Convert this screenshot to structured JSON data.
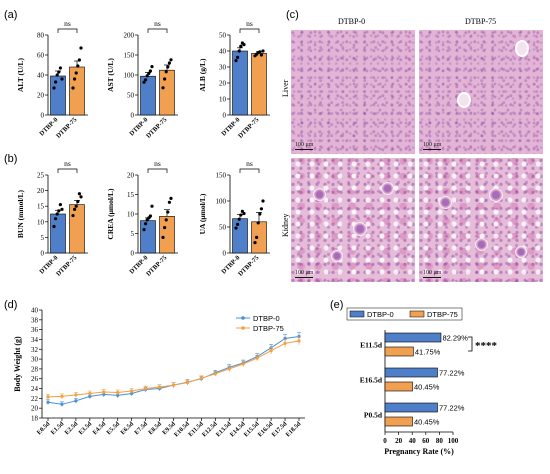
{
  "panels": {
    "a": "(a)",
    "b": "(b)",
    "c": "(c)",
    "d": "(d)",
    "e": "(e)"
  },
  "colors": {
    "group0": "#4f7fc8",
    "group75": "#f0a050",
    "line0": "#4a90d9",
    "line75": "#f5a040"
  },
  "bar_groups": [
    "DTBP-0",
    "DTBP-75"
  ],
  "ns_label": "ns",
  "bar_charts": [
    {
      "id": "alt",
      "ylabel": "ALT (U/L)",
      "ylim": [
        0,
        80
      ],
      "yticks": [
        0,
        20,
        40,
        60,
        80
      ],
      "means": [
        39,
        48
      ],
      "errors": [
        5,
        6
      ],
      "points": [
        [
          27,
          33,
          40,
          43,
          47,
          36
        ],
        [
          27,
          36,
          42,
          49,
          55,
          67
        ]
      ]
    },
    {
      "id": "ast",
      "ylabel": "AST (U/L)",
      "ylim": [
        0,
        200
      ],
      "yticks": [
        0,
        50,
        100,
        150,
        200
      ],
      "means": [
        97,
        112
      ],
      "errors": [
        9,
        13
      ],
      "points": [
        [
          82,
          88,
          98,
          104,
          110,
          121
        ],
        [
          68,
          90,
          108,
          120,
          130,
          138
        ]
      ]
    },
    {
      "id": "alb",
      "ylabel": "ALB (g/L)",
      "ylim": [
        0,
        50
      ],
      "yticks": [
        0,
        10,
        20,
        30,
        40,
        50
      ],
      "means": [
        40,
        38.5
      ],
      "errors": [
        2,
        1
      ],
      "points": [
        [
          34,
          36,
          40,
          43,
          45,
          44
        ],
        [
          37,
          38,
          39,
          39.5,
          37.5,
          40
        ]
      ]
    },
    {
      "id": "bun",
      "ylabel": "BUN (mmol/L)",
      "ylim": [
        0,
        25
      ],
      "yticks": [
        0,
        5,
        10,
        15,
        20,
        25
      ],
      "means": [
        12.5,
        15.5
      ],
      "errors": [
        1.2,
        1.3
      ],
      "points": [
        [
          8.5,
          11,
          12.5,
          13.5,
          15.5,
          14
        ],
        [
          12,
          14,
          15,
          16.5,
          19,
          18
        ]
      ]
    },
    {
      "id": "crea",
      "ylabel": "CREA (μmol/L)",
      "ylim": [
        0,
        20
      ],
      "yticks": [
        0,
        5,
        10,
        15,
        20
      ],
      "means": [
        8.3,
        9.4
      ],
      "errors": [
        0.7,
        1.7
      ],
      "points": [
        [
          6,
          7.5,
          8.5,
          9,
          9.5,
          12
        ],
        [
          4,
          6.5,
          8.5,
          10.5,
          13,
          14
        ]
      ]
    },
    {
      "id": "ua",
      "ylabel": "UA (μmol/L)",
      "ylim": [
        0,
        150
      ],
      "yticks": [
        0,
        50,
        100,
        150
      ],
      "means": [
        66,
        60
      ],
      "errors": [
        8,
        18
      ],
      "points": [
        [
          48,
          55,
          65,
          73,
          80,
          76
        ],
        [
          20,
          30,
          58,
          75,
          85,
          100
        ]
      ]
    }
  ],
  "micrographs": {
    "col_labels": [
      "DTBP-0",
      "DTBP-75"
    ],
    "row_labels": [
      "Liver",
      "Kidney"
    ],
    "scale_label": "100 μm"
  },
  "chart_data": [
    {
      "type": "line",
      "ylabel": "Body Weight (g)",
      "ylim": [
        18,
        40
      ],
      "yticks": [
        18,
        20,
        22,
        24,
        26,
        28,
        30,
        32,
        34,
        36,
        38,
        40
      ],
      "x": [
        "E0.5d",
        "E1.5d",
        "E2.5d",
        "E3.5d",
        "E4.5d",
        "E5.5d",
        "E6.5d",
        "E7.5d",
        "E8.5d",
        "E9.5d",
        "E10.5d",
        "E11.5d",
        "E12.5d",
        "E13.5d",
        "E14.5d",
        "E15.5d",
        "E16.5d",
        "E17.5d",
        "E18.5d"
      ],
      "series": [
        {
          "name": "DTBP-0",
          "values": [
            21.2,
            20.8,
            21.5,
            22.4,
            22.8,
            22.6,
            23.0,
            23.8,
            24.0,
            24.7,
            25.3,
            26.0,
            27.2,
            28.3,
            29.2,
            30.5,
            32.3,
            34.2,
            34.6
          ]
        },
        {
          "name": "DTBP-75",
          "values": [
            22.3,
            22.4,
            22.7,
            23.0,
            23.3,
            23.2,
            23.5,
            24.0,
            24.3,
            24.7,
            25.2,
            26.1,
            27.0,
            28.0,
            29.0,
            30.2,
            31.7,
            33.2,
            33.7
          ]
        }
      ],
      "errors": [
        0.5,
        0.5,
        0.5,
        0.5,
        0.5,
        0.5,
        0.5,
        0.5,
        0.5,
        0.5,
        0.5,
        0.5,
        0.5,
        0.6,
        0.6,
        0.6,
        0.7,
        0.8,
        0.8
      ],
      "legend": "top-right"
    },
    {
      "type": "bar",
      "orientation": "horizontal",
      "xlabel": "Pregnancy Rate (%)",
      "xlim": [
        0,
        100
      ],
      "xticks": [
        0,
        20,
        40,
        60,
        80,
        100
      ],
      "categories": [
        "E11.5d",
        "E16.5d",
        "P0.5d"
      ],
      "series": [
        {
          "name": "DTBP-0",
          "values": [
            82.29,
            77.22,
            77.22
          ],
          "labels": [
            "82.29%",
            "77.22%",
            "77.22%"
          ]
        },
        {
          "name": "DTBP-75",
          "values": [
            41.75,
            40.45,
            40.45
          ],
          "labels": [
            "41.75%",
            "40.45%",
            "40.45%"
          ]
        }
      ],
      "significance": "****",
      "legend": "top"
    }
  ]
}
